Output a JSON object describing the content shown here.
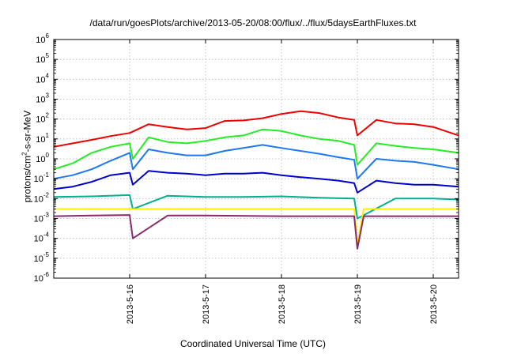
{
  "chart_data": {
    "type": "line",
    "title": "/data/run/goesPlots/archive/2013-05-20/08:00/flux/../flux/5daysEarthFluxes.txt",
    "xlabel": "Coordinated Universal Time (UTC)",
    "ylabel": {
      "prefix": "protons/cm",
      "exp": "2",
      "suffix": "-s-sr-MeV"
    },
    "y_scale": "log",
    "ylim_exponents": [
      -6,
      6
    ],
    "y_tick_exponents": [
      -6,
      -5,
      -4,
      -3,
      -2,
      -1,
      0,
      1,
      2,
      3,
      4,
      5,
      6
    ],
    "xlim": [
      "2013-05-15",
      "2013-05-20 08:00"
    ],
    "x_ticks": [
      "2013-5-16",
      "2013-5-17",
      "2013-5-18",
      "2013-5-19",
      "2013-5-20"
    ],
    "grid": true,
    "series": [
      {
        "color": "#ee0000",
        "x": [
          "2013-05-15 00:00",
          "2013-05-15 06:00",
          "2013-05-15 12:00",
          "2013-05-15 18:00",
          "2013-05-16 00:00",
          "2013-05-16 06:00",
          "2013-05-16 12:00",
          "2013-05-16 18:00",
          "2013-05-17 00:00",
          "2013-05-17 06:00",
          "2013-05-17 12:00",
          "2013-05-17 18:00",
          "2013-05-18 00:00",
          "2013-05-18 06:00",
          "2013-05-18 12:00",
          "2013-05-18 18:00",
          "2013-05-18 23:00",
          "2013-05-19 00:00",
          "2013-05-19 06:00",
          "2013-05-19 12:00",
          "2013-05-19 18:00",
          "2013-05-20 00:00",
          "2013-05-20 08:00"
        ],
        "y": [
          4,
          6,
          9,
          14,
          20,
          55,
          40,
          30,
          35,
          80,
          85,
          110,
          180,
          250,
          200,
          120,
          90,
          15,
          90,
          60,
          55,
          40,
          15
        ]
      },
      {
        "color": "#22ee22",
        "x": [
          "2013-05-15 00:00",
          "2013-05-15 06:00",
          "2013-05-15 12:00",
          "2013-05-15 18:00",
          "2013-05-16 00:00",
          "2013-05-16 01:00",
          "2013-05-16 06:00",
          "2013-05-16 12:00",
          "2013-05-16 18:00",
          "2013-05-17 00:00",
          "2013-05-17 06:00",
          "2013-05-17 12:00",
          "2013-05-17 18:00",
          "2013-05-18 00:00",
          "2013-05-18 06:00",
          "2013-05-18 12:00",
          "2013-05-18 18:00",
          "2013-05-18 23:00",
          "2013-05-19 00:00",
          "2013-05-19 06:00",
          "2013-05-19 12:00",
          "2013-05-19 18:00",
          "2013-05-20 00:00",
          "2013-05-20 08:00"
        ],
        "y": [
          0.3,
          0.6,
          2,
          4,
          6,
          1,
          12,
          7,
          6,
          8,
          12,
          15,
          30,
          25,
          15,
          10,
          8,
          5,
          0.5,
          6,
          4.5,
          3.5,
          3,
          2
        ]
      },
      {
        "color": "#1e78f0",
        "x": [
          "2013-05-15 00:00",
          "2013-05-15 06:00",
          "2013-05-15 12:00",
          "2013-05-15 18:00",
          "2013-05-16 00:00",
          "2013-05-16 01:00",
          "2013-05-16 06:00",
          "2013-05-16 12:00",
          "2013-05-16 18:00",
          "2013-05-17 00:00",
          "2013-05-17 06:00",
          "2013-05-17 12:00",
          "2013-05-17 18:00",
          "2013-05-18 00:00",
          "2013-05-18 06:00",
          "2013-05-18 12:00",
          "2013-05-18 18:00",
          "2013-05-18 23:00",
          "2013-05-19 00:00",
          "2013-05-19 06:00",
          "2013-05-19 12:00",
          "2013-05-19 18:00",
          "2013-05-20 00:00",
          "2013-05-20 08:00"
        ],
        "y": [
          0.1,
          0.15,
          0.3,
          0.8,
          2,
          0.3,
          3,
          2,
          1.5,
          1.5,
          2.5,
          3.5,
          5,
          3.5,
          2.5,
          1.8,
          1.2,
          0.9,
          0.1,
          1,
          0.8,
          0.7,
          0.5,
          0.3
        ]
      },
      {
        "color": "#0000cc",
        "x": [
          "2013-05-15 00:00",
          "2013-05-15 06:00",
          "2013-05-15 12:00",
          "2013-05-15 18:00",
          "2013-05-16 00:00",
          "2013-05-16 01:00",
          "2013-05-16 06:00",
          "2013-05-16 12:00",
          "2013-05-16 18:00",
          "2013-05-17 00:00",
          "2013-05-17 06:00",
          "2013-05-17 12:00",
          "2013-05-17 18:00",
          "2013-05-18 00:00",
          "2013-05-18 06:00",
          "2013-05-18 12:00",
          "2013-05-18 18:00",
          "2013-05-18 23:00",
          "2013-05-19 00:00",
          "2013-05-19 06:00",
          "2013-05-19 12:00",
          "2013-05-19 18:00",
          "2013-05-20 00:00",
          "2013-05-20 08:00"
        ],
        "y": [
          0.03,
          0.04,
          0.07,
          0.15,
          0.2,
          0.05,
          0.25,
          0.2,
          0.18,
          0.15,
          0.18,
          0.18,
          0.2,
          0.15,
          0.12,
          0.1,
          0.08,
          0.06,
          0.02,
          0.08,
          0.06,
          0.05,
          0.05,
          0.04
        ]
      },
      {
        "color": "#00b090",
        "x": [
          "2013-05-15 00:00",
          "2013-05-15 12:00",
          "2013-05-16 00:00",
          "2013-05-16 01:00",
          "2013-05-16 12:00",
          "2013-05-17 00:00",
          "2013-05-17 12:00",
          "2013-05-18 00:00",
          "2013-05-18 12:00",
          "2013-05-18 23:00",
          "2013-05-19 00:00",
          "2013-05-19 12:00",
          "2013-05-20 00:00",
          "2013-05-20 08:00"
        ],
        "y": [
          0.012,
          0.013,
          0.015,
          0.003,
          0.014,
          0.012,
          0.012,
          0.013,
          0.011,
          0.01,
          0.001,
          0.01,
          0.01,
          0.009
        ]
      },
      {
        "color": "#ffee00",
        "x": [
          "2013-05-15 00:00",
          "2013-05-15 12:00",
          "2013-05-16 00:00",
          "2013-05-17 00:00",
          "2013-05-18 00:00",
          "2013-05-18 23:00",
          "2013-05-19 00:00",
          "2013-05-19 02:00",
          "2013-05-20 00:00",
          "2013-05-20 08:00"
        ],
        "y": [
          0.003,
          0.003,
          0.003,
          0.003,
          0.003,
          0.003,
          5e-05,
          0.003,
          0.003,
          0.003
        ]
      },
      {
        "color": "#8b2a6a",
        "x": [
          "2013-05-15 00:00",
          "2013-05-15 12:00",
          "2013-05-16 00:00",
          "2013-05-16 01:00",
          "2013-05-16 12:00",
          "2013-05-17 00:00",
          "2013-05-18 00:00",
          "2013-05-18 23:00",
          "2013-05-19 00:00",
          "2013-05-19 02:00",
          "2013-05-20 00:00",
          "2013-05-20 08:00"
        ],
        "y": [
          0.0013,
          0.0014,
          0.0015,
          0.0001,
          0.0014,
          0.0014,
          0.0013,
          0.0013,
          3e-05,
          0.0013,
          0.0013,
          0.0013
        ]
      }
    ]
  }
}
